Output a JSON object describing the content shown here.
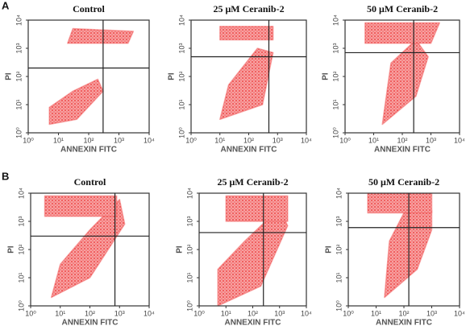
{
  "row_labels": [
    "A",
    "B"
  ],
  "chart_data": [
    {
      "type": "scatter",
      "title": "Control",
      "x_label": "ANNEXIN FITC",
      "y_label": "PI",
      "log_scale": true,
      "color": "#f25a5a",
      "xlim": [
        1,
        10000
      ],
      "ylim": [
        1,
        10000
      ],
      "xticks": [
        {
          "value": 1,
          "label": "10⁰"
        },
        {
          "value": 10,
          "label": "10¹"
        },
        {
          "value": 100,
          "label": "10²"
        },
        {
          "value": 1000,
          "label": "10³"
        },
        {
          "value": 10000,
          "label": "10⁴"
        }
      ],
      "yticks": [
        {
          "value": 1,
          "label": "10⁰"
        },
        {
          "value": 10,
          "label": "10¹"
        },
        {
          "value": 100,
          "label": "10²"
        },
        {
          "value": 1000,
          "label": "10³"
        },
        {
          "value": 10000,
          "label": "10⁴"
        }
      ],
      "gate_x": 300,
      "gate_y": 200,
      "regions": [
        {
          "x": [
            5,
            40,
            300,
            200,
            30,
            5
          ],
          "y": [
            2,
            3,
            30,
            80,
            30,
            8
          ]
        },
        {
          "x": [
            20,
            2000,
            3000,
            30
          ],
          "y": [
            1500,
            1500,
            4000,
            5000
          ]
        }
      ]
    },
    {
      "type": "scatter",
      "title": "25 μM Ceranib-2",
      "x_label": "ANNEXIN FITC",
      "y_label": "PI",
      "log_scale": true,
      "color": "#f25a5a",
      "xlim": [
        1,
        10000
      ],
      "ylim": [
        1,
        10000
      ],
      "xticks": [
        {
          "value": 1,
          "label": "10⁰"
        },
        {
          "value": 10,
          "label": "10¹"
        },
        {
          "value": 100,
          "label": "10²"
        },
        {
          "value": 1000,
          "label": "10³"
        },
        {
          "value": 10000,
          "label": "10⁴"
        }
      ],
      "yticks": [
        {
          "value": 1,
          "label": "10⁰"
        },
        {
          "value": 10,
          "label": "10¹"
        },
        {
          "value": 100,
          "label": "10²"
        },
        {
          "value": 1000,
          "label": "10³"
        },
        {
          "value": 10000,
          "label": "10⁴"
        }
      ],
      "gate_x": 500,
      "gate_y": 500,
      "regions": [
        {
          "x": [
            10,
            300,
            700,
            200,
            20
          ],
          "y": [
            3,
            10,
            700,
            1000,
            50
          ]
        },
        {
          "x": [
            10,
            700,
            700,
            10
          ],
          "y": [
            2000,
            2000,
            6000,
            6000
          ]
        }
      ]
    },
    {
      "type": "scatter",
      "title": "50 μM Ceranib-2",
      "x_label": "ANNEXIN FITC",
      "y_label": "PI",
      "log_scale": true,
      "color": "#f25a5a",
      "xlim": [
        1,
        10000
      ],
      "ylim": [
        1,
        10000
      ],
      "xticks": [
        {
          "value": 1,
          "label": "10⁰"
        },
        {
          "value": 10,
          "label": "10¹"
        },
        {
          "value": 100,
          "label": "10²"
        },
        {
          "value": 1000,
          "label": "10³"
        },
        {
          "value": 10000,
          "label": "10⁴"
        }
      ],
      "yticks": [
        {
          "value": 1,
          "label": "10⁰"
        },
        {
          "value": 10,
          "label": "10¹"
        },
        {
          "value": 100,
          "label": "10²"
        },
        {
          "value": 1000,
          "label": "10³"
        },
        {
          "value": 10000,
          "label": "10⁴"
        }
      ],
      "gate_x": 250,
      "gate_y": 700,
      "regions": [
        {
          "x": [
            20,
            300,
            800,
            300,
            40
          ],
          "y": [
            2,
            20,
            500,
            2000,
            300
          ]
        },
        {
          "x": [
            5,
            1000,
            2000,
            5
          ],
          "y": [
            1500,
            1500,
            8000,
            8000
          ]
        }
      ]
    },
    {
      "type": "scatter",
      "title": "Control",
      "x_label": "ANNEXIN FITC",
      "y_label": "PI",
      "log_scale": true,
      "color": "#f25a5a",
      "xlim": [
        1,
        10000
      ],
      "ylim": [
        1,
        10000
      ],
      "xticks": [
        {
          "value": 1,
          "label": "10⁰"
        },
        {
          "value": 10,
          "label": "10¹"
        },
        {
          "value": 100,
          "label": "10²"
        },
        {
          "value": 1000,
          "label": "10³"
        },
        {
          "value": 10000,
          "label": "10⁴"
        }
      ],
      "yticks": [
        {
          "value": 1,
          "label": "10⁰"
        },
        {
          "value": 10,
          "label": "10¹"
        },
        {
          "value": 100,
          "label": "10²"
        },
        {
          "value": 1000,
          "label": "10³"
        },
        {
          "value": 10000,
          "label": "10⁴"
        }
      ],
      "gate_x": 700,
      "gate_y": 300,
      "regions": [
        {
          "x": [
            5,
            100,
            1500,
            1000,
            100,
            10
          ],
          "y": [
            2,
            10,
            800,
            6000,
            500,
            30
          ]
        },
        {
          "x": [
            3,
            800,
            800,
            3
          ],
          "y": [
            1500,
            1500,
            8000,
            8000
          ]
        }
      ]
    },
    {
      "type": "scatter",
      "title": "25 μM Ceranib-2",
      "x_label": "ANNEXIN FITC",
      "y_label": "PI",
      "log_scale": true,
      "color": "#f25a5a",
      "xlim": [
        1,
        10000
      ],
      "ylim": [
        1,
        10000
      ],
      "xticks": [
        {
          "value": 1,
          "label": "10⁰"
        },
        {
          "value": 10,
          "label": "10¹"
        },
        {
          "value": 100,
          "label": "10²"
        },
        {
          "value": 1000,
          "label": "10³"
        },
        {
          "value": 10000,
          "label": "10⁴"
        }
      ],
      "yticks": [
        {
          "value": 1,
          "label": "10⁰"
        },
        {
          "value": 10,
          "label": "10¹"
        },
        {
          "value": 100,
          "label": "10²"
        },
        {
          "value": 1000,
          "label": "10³"
        },
        {
          "value": 10000,
          "label": "10⁴"
        }
      ],
      "gate_x": 250,
      "gate_y": 400,
      "regions": [
        {
          "x": [
            5,
            200,
            2000,
            1000,
            50,
            5
          ],
          "y": [
            1,
            5,
            700,
            3000,
            200,
            20
          ]
        },
        {
          "x": [
            10,
            2000,
            2000,
            10
          ],
          "y": [
            1000,
            1000,
            8000,
            8000
          ]
        }
      ]
    },
    {
      "type": "scatter",
      "title": "50 μM Ceranib-2",
      "x_label": "ANNEXIN FITC",
      "y_label": "PI",
      "log_scale": true,
      "color": "#f25a5a",
      "xlim": [
        1,
        10000
      ],
      "ylim": [
        1,
        10000
      ],
      "xticks": [
        {
          "value": 1,
          "label": "10⁰"
        },
        {
          "value": 10,
          "label": "10¹"
        },
        {
          "value": 100,
          "label": "10²"
        },
        {
          "value": 1000,
          "label": "10³"
        },
        {
          "value": 10000,
          "label": "10⁴"
        }
      ],
      "yticks": [
        {
          "value": 1,
          "label": "10⁰"
        },
        {
          "value": 10,
          "label": "10¹"
        },
        {
          "value": 100,
          "label": "10²"
        },
        {
          "value": 1000,
          "label": "10³"
        },
        {
          "value": 10000,
          "label": "10⁴"
        }
      ],
      "gate_x": 150,
      "gate_y": 600,
      "regions": [
        {
          "x": [
            20,
            300,
            1000,
            1000,
            100,
            30
          ],
          "y": [
            2,
            20,
            500,
            2500,
            2000,
            200
          ]
        },
        {
          "x": [
            5,
            1000,
            1000,
            5
          ],
          "y": [
            2000,
            2000,
            10000,
            10000
          ]
        }
      ]
    }
  ]
}
